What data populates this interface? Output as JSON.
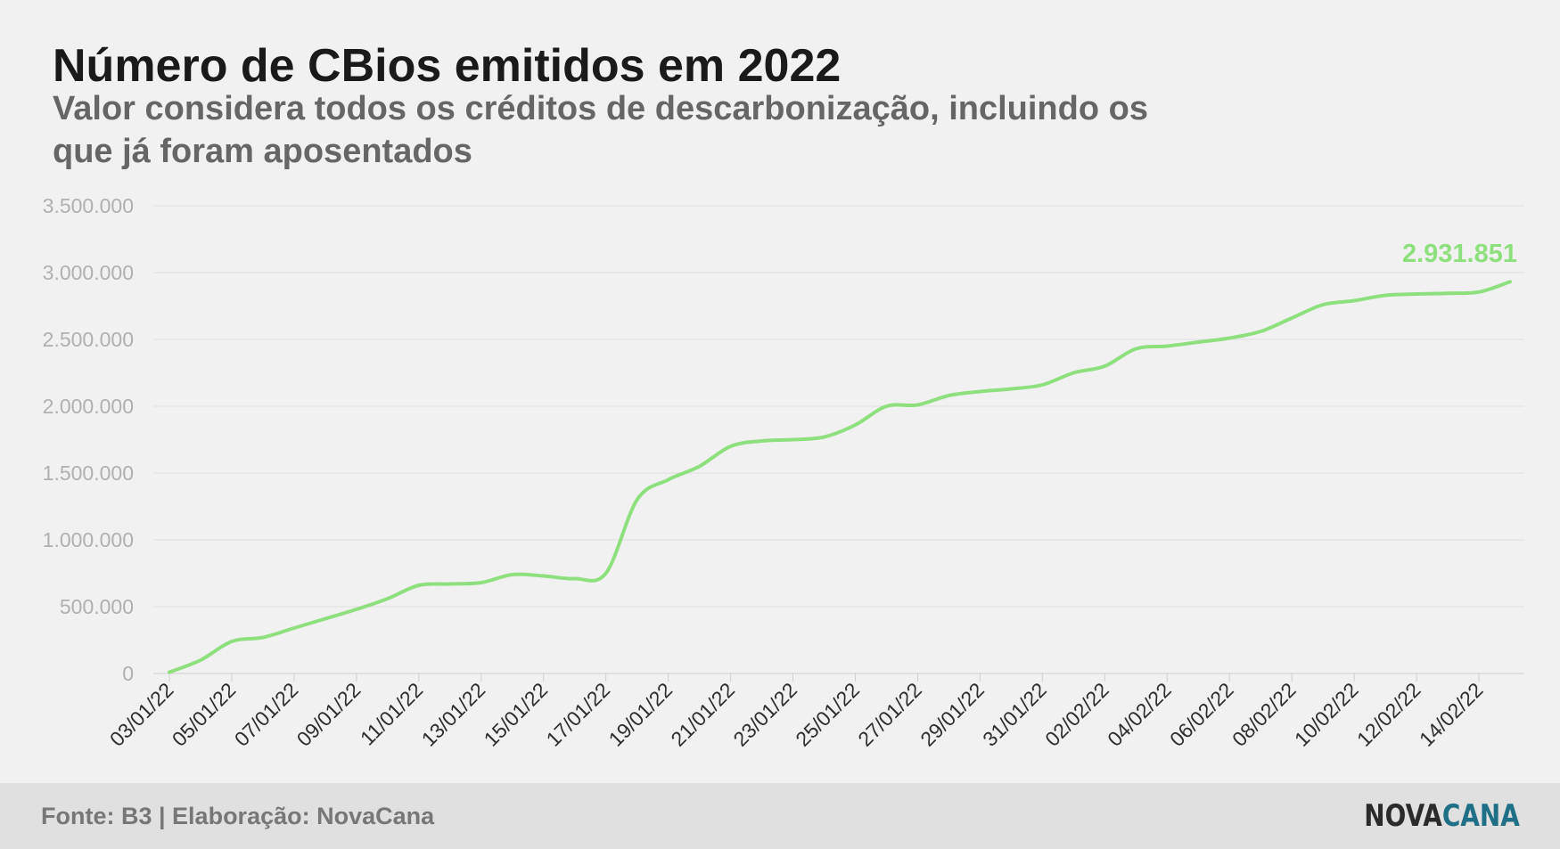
{
  "title": "Número de CBios emitidos em 2022",
  "subtitle": "Valor considera todos os créditos de descarbonização, incluindo os que já foram aposentados",
  "footer": {
    "source": "Fonte: B3 | Elaboração: NovaCana",
    "logo_part1": "NOVA",
    "logo_part2": "CANA"
  },
  "colors": {
    "line": "#8ee07e",
    "label": "#8ee07e",
    "axis_text": "#b0b0b0",
    "x_tick_text": "#2e2e2e",
    "grid": "#dedede",
    "logo_dark": "#2b2b2b",
    "logo_accent": "#1f6f86"
  },
  "chart_data": {
    "type": "line",
    "ylim": [
      0,
      3500000
    ],
    "y_ticks": [
      0,
      500000,
      1000000,
      1500000,
      2000000,
      2500000,
      3000000,
      3500000
    ],
    "y_tick_labels": [
      "0",
      "500.000",
      "1.000.000",
      "1.500.000",
      "2.000.000",
      "2.500.000",
      "3.000.000",
      "3.500.000"
    ],
    "x_tick_labels": [
      "03/01/22",
      "05/01/22",
      "07/01/22",
      "09/01/22",
      "11/01/22",
      "13/01/22",
      "15/01/22",
      "17/01/22",
      "19/01/22",
      "21/01/22",
      "23/01/22",
      "25/01/22",
      "27/01/22",
      "29/01/22",
      "31/01/22",
      "02/02/22",
      "04/02/22",
      "06/02/22",
      "08/02/22",
      "10/02/22",
      "12/02/22",
      "14/02/22"
    ],
    "grid": true,
    "end_label": "2.931.851",
    "series": [
      {
        "x": [
          "03/01/22",
          "04/01/22",
          "05/01/22",
          "06/01/22",
          "07/01/22",
          "08/01/22",
          "09/01/22",
          "10/01/22",
          "11/01/22",
          "12/01/22",
          "13/01/22",
          "14/01/22",
          "15/01/22",
          "16/01/22",
          "17/01/22",
          "18/01/22",
          "19/01/22",
          "20/01/22",
          "21/01/22",
          "22/01/22",
          "23/01/22",
          "24/01/22",
          "25/01/22",
          "26/01/22",
          "27/01/22",
          "28/01/22",
          "29/01/22",
          "30/01/22",
          "31/01/22",
          "01/02/22",
          "02/02/22",
          "03/02/22",
          "04/02/22",
          "05/02/22",
          "06/02/22",
          "07/02/22",
          "08/02/22",
          "09/02/22",
          "10/02/22",
          "11/02/22",
          "12/02/22",
          "13/02/22",
          "14/02/22",
          "15/02/22"
        ],
        "values": [
          10000,
          100000,
          240000,
          270000,
          340000,
          410000,
          480000,
          560000,
          660000,
          670000,
          680000,
          740000,
          730000,
          710000,
          750000,
          1300000,
          1450000,
          1550000,
          1700000,
          1740000,
          1750000,
          1770000,
          1860000,
          2000000,
          2010000,
          2080000,
          2110000,
          2130000,
          2160000,
          2250000,
          2300000,
          2430000,
          2450000,
          2480000,
          2510000,
          2560000,
          2660000,
          2760000,
          2790000,
          2830000,
          2840000,
          2845000,
          2855000,
          2931851
        ]
      }
    ]
  }
}
